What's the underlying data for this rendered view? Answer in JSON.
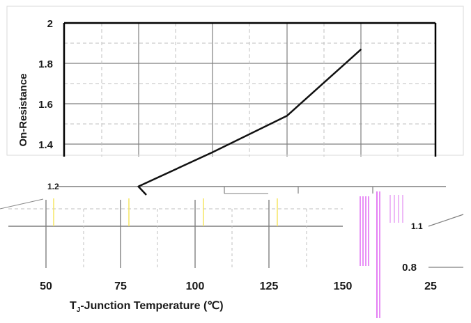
{
  "chart_data": {
    "type": "line",
    "title": "",
    "xlabel": "TJ-Junction Temperature (℃)",
    "ylabel": "On-Resistance",
    "x_ticks": [
      "50",
      "75",
      "100",
      "125",
      "150"
    ],
    "x_tick_extra": "25",
    "y_ticks": [
      "2",
      "1.8",
      "1.6",
      "1.4"
    ],
    "y_tick_lower": "0.8",
    "ylim": [
      0.8,
      2.0
    ],
    "xlim": [
      25,
      150
    ],
    "grid": true,
    "series": [
      {
        "x": [
          75,
          100,
          125,
          150
        ],
        "values": [
          1.19,
          1.36,
          1.54,
          1.87
        ]
      }
    ]
  },
  "xlabel_prefix": "T",
  "xlabel_sub": "J",
  "xlabel_rest": "-Junction Temperature (℃)",
  "glitch_text_a": "1.2",
  "glitch_text_b": "1.1",
  "colors": {
    "line": "#111111",
    "grid": "#7f7f7f",
    "grid_dash": "#bfbfbf",
    "glitch_magenta": "#d946ef",
    "glitch_yellow": "#f5e663"
  }
}
